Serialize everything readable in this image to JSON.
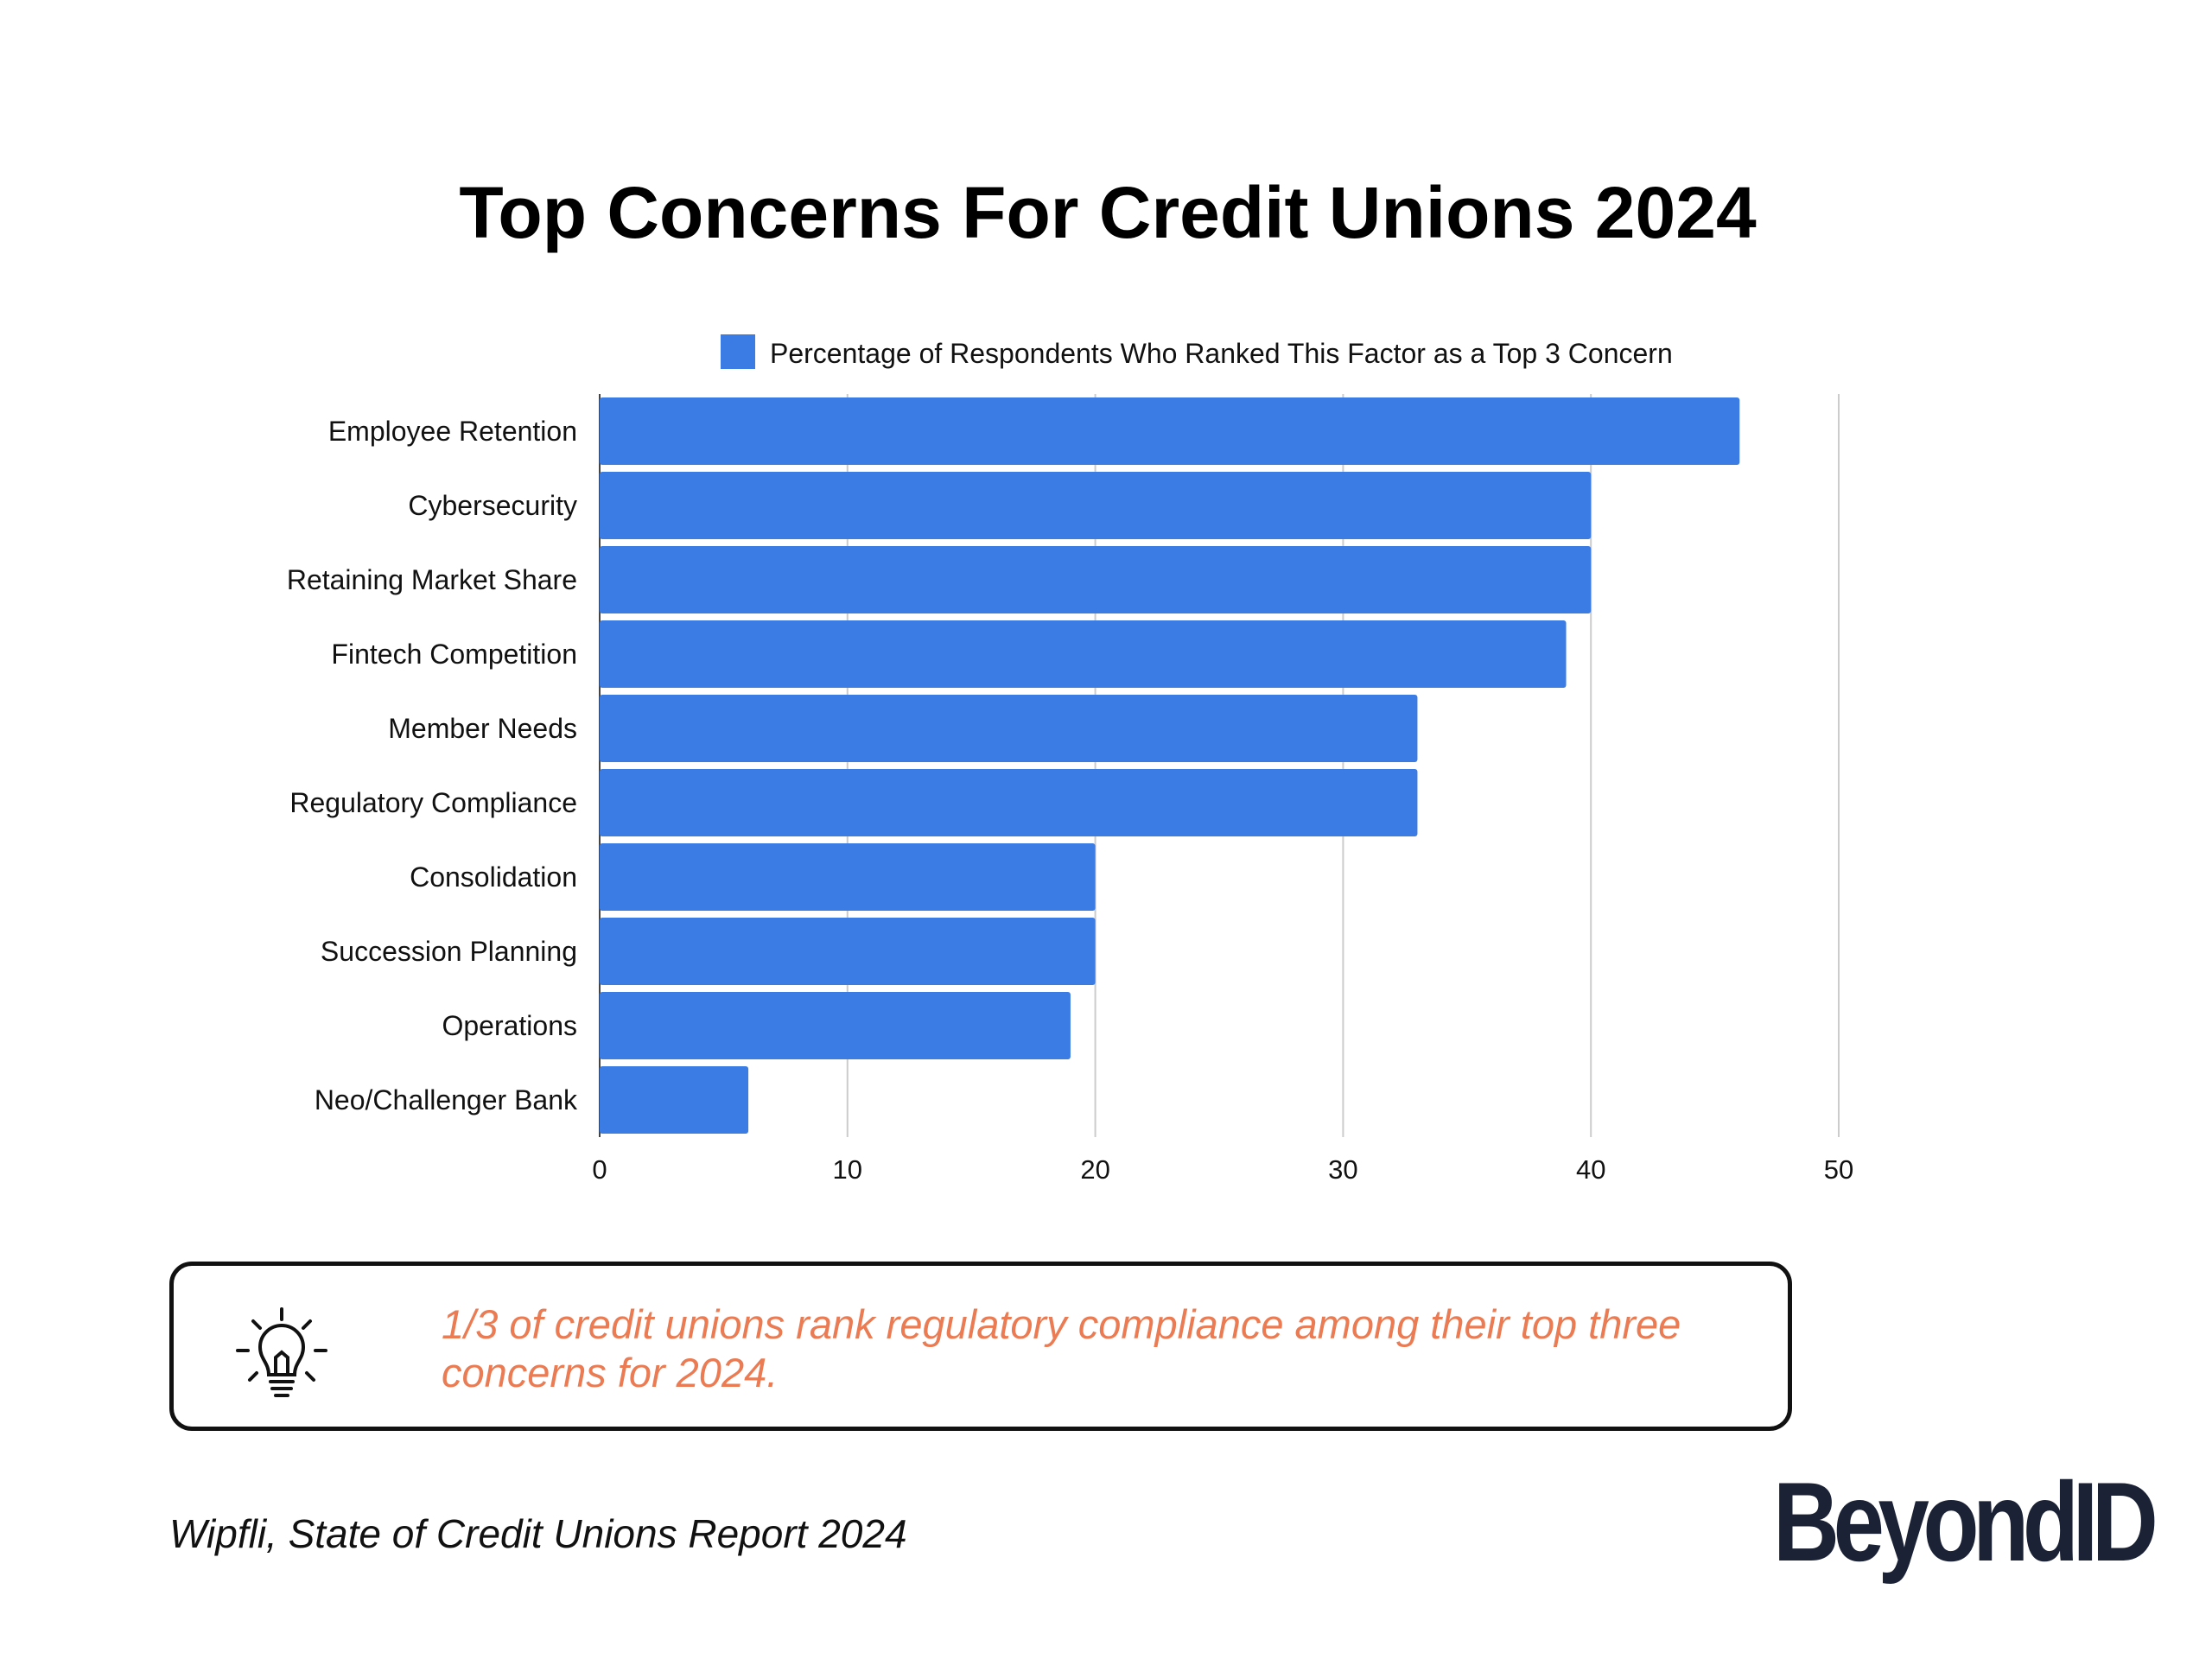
{
  "chart_data": {
    "type": "bar",
    "orientation": "horizontal",
    "title": "Top Concerns For Credit Unions 2024",
    "legend": "Percentage of Respondents Who Ranked This Factor as a Top 3 Concern",
    "legend_position": "top",
    "categories": [
      "Employee Retention",
      "Cybersecurity",
      "Retaining Market Share",
      "Fintech Competition",
      "Member Needs",
      "Regulatory Compliance",
      "Consolidation",
      "Succession Planning",
      "Operations",
      "Neo/Challenger Bank"
    ],
    "values": [
      46,
      40,
      40,
      39,
      33,
      33,
      20,
      20,
      19,
      6
    ],
    "xlim": [
      0,
      50
    ],
    "xticks": [
      "0",
      "10",
      "20",
      "30",
      "40",
      "50"
    ],
    "grid": true,
    "bar_color": "#3a7be4"
  },
  "insight": {
    "icon": "lightbulb-icon",
    "text": "1/3 of credit unions rank regulatory compliance among their top three concerns for 2024.",
    "color": "#ea7b52"
  },
  "source": "Wipfli, State of Credit Unions Report 2024",
  "logo": "BeyondID"
}
